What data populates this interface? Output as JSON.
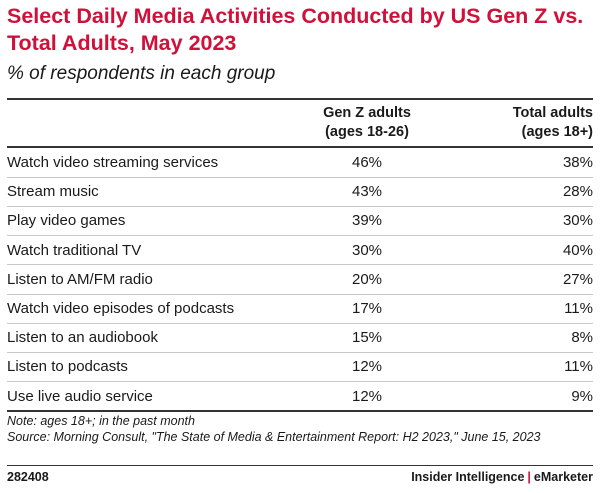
{
  "chart_data": {
    "type": "table",
    "title": "Select Daily Media Activities Conducted by US Gen Z vs. Total Adults, May 2023",
    "subtitle": "% of respondents in each group",
    "columns": [
      {
        "line1": "Gen Z adults",
        "line2": "(ages 18-26)"
      },
      {
        "line1": "Total adults",
        "line2": "(ages 18+)"
      }
    ],
    "rows": [
      {
        "label": "Watch video streaming services",
        "genz": "46%",
        "total": "38%"
      },
      {
        "label": "Stream music",
        "genz": "43%",
        "total": "28%"
      },
      {
        "label": "Play video games",
        "genz": "39%",
        "total": "30%"
      },
      {
        "label": "Watch traditional TV",
        "genz": "30%",
        "total": "40%"
      },
      {
        "label": "Listen to AM/FM radio",
        "genz": "20%",
        "total": "27%"
      },
      {
        "label": "Watch video episodes of podcasts",
        "genz": "17%",
        "total": "11%"
      },
      {
        "label": "Listen to an audiobook",
        "genz": "15%",
        "total": "8%"
      },
      {
        "label": "Listen to podcasts",
        "genz": "12%",
        "total": "11%"
      },
      {
        "label": "Use live audio service",
        "genz": "12%",
        "total": "9%"
      }
    ],
    "note": "Note: ages 18+; in the past month",
    "source": "Source: Morning Consult, \"The State of Media & Entertainment Report: H2 2023,\" June 15, 2023"
  },
  "footer": {
    "chart_id": "282408",
    "brand_left": "Insider Intelligence",
    "separator": "|",
    "brand_right": "eMarketer"
  },
  "colors": {
    "title": "#d0103a",
    "text": "#1a1a1a"
  }
}
